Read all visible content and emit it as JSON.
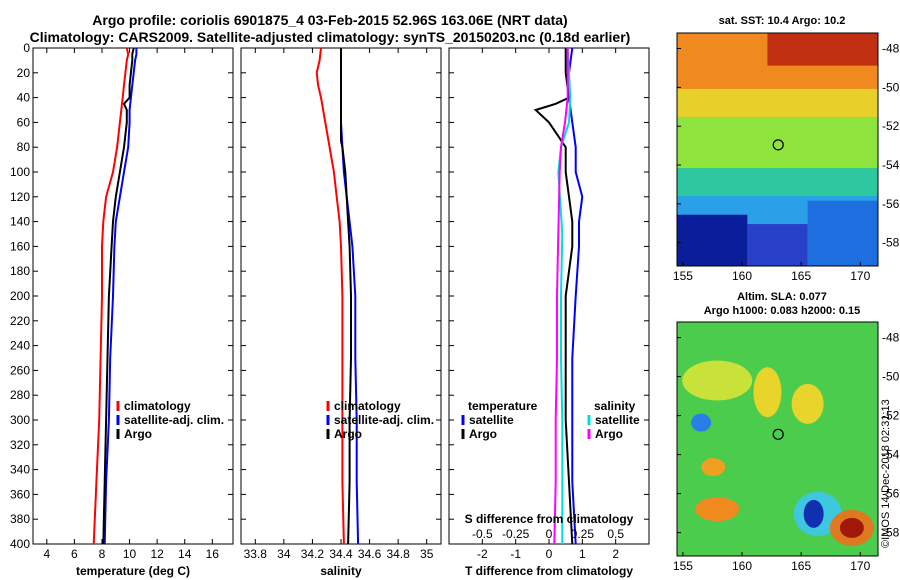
{
  "header": {
    "title_line1": "Argo profile: coriolis 6901875_4 03-Feb-2015 52.96S 163.06E (NRT data)",
    "title_line2": "Climatology: CARS2009. Satellite-adjusted climatology: synTS_20150203.nc (0.18d earlier)"
  },
  "maps": {
    "sst_title": "sat. SST: 10.4 Argo: 10.2",
    "sla_title1": "Altim. SLA: 0.077",
    "sla_title2": "Argo h1000: 0.083 h2000: 0.15",
    "lat_ticks": [
      "-48",
      "-50",
      "-52",
      "-54",
      "-56",
      "-58"
    ],
    "lon_ticks": [
      "155",
      "160",
      "165",
      "170"
    ]
  },
  "footer": {
    "imos_stamp": "©IMOS 14-Dec-2018 02:31:13"
  },
  "legends": {
    "temp": [
      "climatology",
      "satellite-adj. clim.",
      "Argo"
    ],
    "sal": [
      "climatology",
      "satellite-adj. clim.",
      "Argo"
    ],
    "diff_t_head": "temperature",
    "diff_s_head": "salinity",
    "diff_items": [
      "satellite",
      "Argo"
    ],
    "s_diff_label": "S difference from climatology"
  },
  "colors": {
    "climatology": "#ff0000",
    "satellite": "#0000ff",
    "argo": "#000000",
    "sdiff_sat": "#00dddd",
    "sdiff_argo": "#ff00ff"
  },
  "chart_data": [
    {
      "type": "line",
      "xlabel": "temperature (deg C)",
      "ylabel": "",
      "xlim": [
        3,
        17.5
      ],
      "ylim": [
        400,
        0
      ],
      "x_ticks": [
        4,
        6,
        8,
        10,
        12,
        14,
        16
      ],
      "y_ticks": [
        0,
        20,
        40,
        60,
        80,
        100,
        120,
        140,
        160,
        180,
        200,
        220,
        240,
        260,
        280,
        300,
        320,
        340,
        360,
        380,
        400
      ],
      "series": [
        {
          "name": "climatology",
          "depth": [
            0,
            5,
            10,
            20,
            30,
            40,
            50,
            60,
            80,
            100,
            120,
            140,
            160,
            200,
            250,
            300,
            350,
            400
          ],
          "values": [
            9.8,
            9.9,
            9.8,
            9.7,
            9.6,
            9.5,
            9.4,
            9.3,
            9.1,
            8.8,
            8.3,
            8.1,
            8.0,
            8.0,
            7.9,
            7.8,
            7.6,
            7.4
          ]
        },
        {
          "name": "satellite-adj. clim.",
          "depth": [
            0,
            5,
            10,
            20,
            30,
            40,
            50,
            60,
            80,
            100,
            120,
            140,
            160,
            200,
            250,
            300,
            350,
            400
          ],
          "values": [
            10.5,
            10.5,
            10.4,
            10.3,
            10.2,
            10.1,
            10.0,
            10.0,
            9.9,
            9.6,
            9.3,
            9.0,
            8.9,
            8.8,
            8.6,
            8.5,
            8.3,
            8.2
          ]
        },
        {
          "name": "Argo",
          "depth": [
            0,
            5,
            10,
            20,
            30,
            40,
            45,
            50,
            60,
            70,
            80,
            100,
            120,
            140,
            160,
            200,
            250,
            300,
            350,
            400
          ],
          "values": [
            10.3,
            10.2,
            10.2,
            10.1,
            10.0,
            10.0,
            9.6,
            9.8,
            9.8,
            9.7,
            9.6,
            9.3,
            9.0,
            8.8,
            8.7,
            8.5,
            8.4,
            8.3,
            8.2,
            8.1
          ]
        }
      ]
    },
    {
      "type": "line",
      "xlabel": "salinity",
      "xlim": [
        33.7,
        35.1
      ],
      "ylim": [
        400,
        0
      ],
      "x_ticks": [
        33.8,
        34,
        34.2,
        34.4,
        34.6,
        34.8,
        35
      ],
      "x_tick_labels": [
        "33.8",
        "34",
        "34.2",
        "34.4",
        "34.6",
        "34.8",
        "35"
      ],
      "series": [
        {
          "name": "climatology",
          "depth": [
            0,
            10,
            20,
            30,
            40,
            60,
            80,
            100,
            120,
            140,
            160,
            200,
            250,
            300,
            350,
            400
          ],
          "values": [
            34.26,
            34.25,
            34.23,
            34.24,
            34.26,
            34.29,
            34.32,
            34.35,
            34.37,
            34.39,
            34.4,
            34.41,
            34.41,
            34.41,
            34.41,
            34.42
          ]
        },
        {
          "name": "satellite-adj. clim.",
          "depth": [
            0,
            10,
            20,
            40,
            60,
            80,
            100,
            120,
            140,
            160,
            200,
            250,
            300,
            350,
            400
          ],
          "values": [
            34.4,
            34.4,
            34.4,
            34.4,
            34.4,
            34.41,
            34.42,
            34.44,
            34.46,
            34.48,
            34.5,
            34.5,
            34.51,
            34.51,
            34.52
          ]
        },
        {
          "name": "Argo",
          "depth": [
            0,
            10,
            20,
            40,
            60,
            75,
            80,
            100,
            120,
            140,
            160,
            200,
            250,
            300,
            350,
            400
          ],
          "values": [
            34.4,
            34.4,
            34.4,
            34.4,
            34.4,
            34.4,
            34.41,
            34.43,
            34.44,
            34.45,
            34.46,
            34.47,
            34.47,
            34.46,
            34.46,
            34.45
          ]
        }
      ]
    },
    {
      "type": "line",
      "xlabel": "T difference from climatology",
      "xlim": [
        -3,
        3
      ],
      "ylim": [
        400,
        0
      ],
      "x_ticks": [
        -2,
        -1,
        0,
        1,
        2
      ],
      "secondary_x_label": "S difference from climatology",
      "secondary_x_ticks": [
        -0.5,
        -0.25,
        0,
        0.25,
        0.5
      ],
      "secondary_xlim": [
        -0.75,
        0.75
      ],
      "series": [
        {
          "name": "temperature satellite",
          "axis": "T",
          "depth": [
            0,
            20,
            40,
            60,
            80,
            100,
            120,
            140,
            160,
            200,
            250,
            300,
            350,
            400
          ],
          "values": [
            0.7,
            0.6,
            0.6,
            0.7,
            0.8,
            0.8,
            1.0,
            0.9,
            0.9,
            0.8,
            0.7,
            0.7,
            0.7,
            0.8
          ]
        },
        {
          "name": "temperature Argo",
          "axis": "T",
          "depth": [
            0,
            20,
            40,
            45,
            50,
            60,
            80,
            100,
            120,
            140,
            160,
            200,
            250,
            300,
            350,
            400
          ],
          "values": [
            0.5,
            0.5,
            0.6,
            0.2,
            -0.4,
            0.0,
            0.5,
            0.5,
            0.6,
            0.7,
            0.7,
            0.5,
            0.5,
            0.5,
            0.6,
            0.7
          ]
        },
        {
          "name": "salinity satellite",
          "axis": "S",
          "depth": [
            0,
            20,
            40,
            60,
            80,
            100,
            150,
            200,
            250,
            300,
            350,
            400
          ],
          "values": [
            0.14,
            0.15,
            0.16,
            0.15,
            0.09,
            0.07,
            0.1,
            0.09,
            0.09,
            0.1,
            0.1,
            0.1
          ]
        },
        {
          "name": "salinity Argo",
          "axis": "S",
          "depth": [
            0,
            20,
            40,
            60,
            80,
            100,
            150,
            200,
            250,
            300,
            350,
            400
          ],
          "values": [
            0.14,
            0.14,
            0.14,
            0.12,
            0.09,
            0.08,
            0.07,
            0.06,
            0.06,
            0.05,
            0.05,
            0.04
          ]
        }
      ]
    }
  ]
}
